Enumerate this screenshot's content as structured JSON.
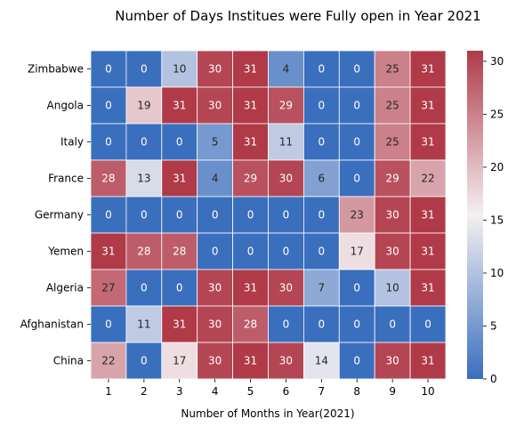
{
  "chart_data": {
    "type": "heatmap",
    "title": "Number of Days Institues were Fully open in Year 2021",
    "xlabel": "Number of Months in Year(2021)",
    "ylabel": "",
    "x_categories": [
      "1",
      "2",
      "3",
      "4",
      "5",
      "6",
      "7",
      "8",
      "9",
      "10"
    ],
    "y_categories": [
      "Zimbabwe",
      "Angola",
      "Italy",
      "France",
      "Germany",
      "Yemen",
      "Algeria",
      "Afghanistan",
      "China"
    ],
    "values": [
      [
        0,
        0,
        10,
        30,
        31,
        4,
        0,
        0,
        25,
        31
      ],
      [
        0,
        19,
        31,
        30,
        31,
        29,
        0,
        0,
        25,
        31
      ],
      [
        0,
        0,
        0,
        5,
        31,
        11,
        0,
        0,
        25,
        31
      ],
      [
        28,
        13,
        31,
        4,
        29,
        30,
        6,
        0,
        29,
        22
      ],
      [
        0,
        0,
        0,
        0,
        0,
        0,
        0,
        23,
        30,
        31
      ],
      [
        31,
        28,
        28,
        0,
        0,
        0,
        0,
        17,
        30,
        31
      ],
      [
        27,
        0,
        0,
        30,
        31,
        30,
        7,
        0,
        10,
        31
      ],
      [
        0,
        11,
        31,
        30,
        28,
        0,
        0,
        0,
        0,
        0
      ],
      [
        22,
        0,
        17,
        30,
        31,
        30,
        14,
        0,
        30,
        31
      ]
    ],
    "vmin": 0,
    "vmax": 31,
    "colormap": [
      "#3a6fbe",
      "#f5f0f2",
      "#b03a48"
    ],
    "colorbar_ticks": [
      0,
      5,
      10,
      15,
      20,
      25,
      30
    ],
    "colorbar_tick_labels": [
      "0",
      "5",
      "10",
      "15",
      "20",
      "25",
      "30"
    ],
    "annotations_shown": true,
    "grid": false
  }
}
